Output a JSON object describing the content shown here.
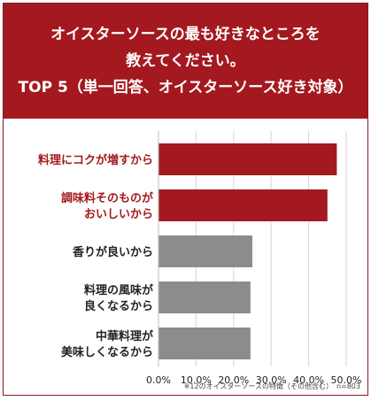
{
  "header": {
    "line1": "オイスターソースの最も好きなところを",
    "line2": "教えてください。",
    "line3": "TOP 5（単一回答、オイスターソース好き対象）"
  },
  "colors": {
    "header_bg": "#a3191f",
    "highlight": "#a3191f",
    "normal": "#8c8c8c",
    "highlight_text": "#a3191f",
    "normal_text": "#222222"
  },
  "chart_data": {
    "type": "bar",
    "orientation": "horizontal",
    "categories": [
      [
        "料理にコクが増すから"
      ],
      [
        "調味料そのものが",
        "おいしいから"
      ],
      [
        "香りが良いから"
      ],
      [
        "料理の風味が",
        "良くなるから"
      ],
      [
        "中華料理が",
        "美味しくなるから"
      ]
    ],
    "values": [
      47.5,
      45.0,
      25.0,
      24.5,
      24.5
    ],
    "highlighted": [
      true,
      true,
      false,
      false,
      false
    ],
    "xlim": [
      0,
      50
    ],
    "xticks": [
      "0.0%",
      "10.0%",
      "20.0%",
      "30.0%",
      "40.0%",
      "50.0%"
    ],
    "grid": true
  },
  "footnote": "※12のオイスターソースの特徴（その他含む）　n=803"
}
